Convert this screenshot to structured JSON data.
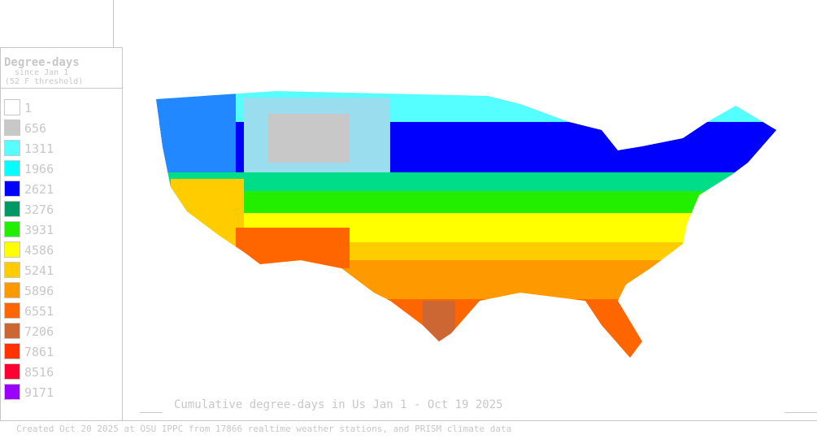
{
  "legend": {
    "title": "Degree-days",
    "subtitle": "since Jan 1",
    "threshold": "(52 F threshold)",
    "items": [
      {
        "value": 1,
        "color": "#ffffff"
      },
      {
        "value": 656,
        "color": "#c8c8c8"
      },
      {
        "value": 1311,
        "color": "#55ffff"
      },
      {
        "value": 1966,
        "color": "#00ffff"
      },
      {
        "value": 2621,
        "color": "#0000ff"
      },
      {
        "value": 3276,
        "color": "#009966"
      },
      {
        "value": 3931,
        "color": "#22ee00"
      },
      {
        "value": 4586,
        "color": "#ffff00"
      },
      {
        "value": 5241,
        "color": "#ffcc00"
      },
      {
        "value": 5896,
        "color": "#ff9900"
      },
      {
        "value": 6551,
        "color": "#ff6600"
      },
      {
        "value": 7206,
        "color": "#cc6633"
      },
      {
        "value": 7861,
        "color": "#ff3300"
      },
      {
        "value": 8516,
        "color": "#ff0033"
      },
      {
        "value": 9171,
        "color": "#9900ff"
      }
    ]
  },
  "caption": "Cumulative degree-days in Us  Jan 1 - Oct 19 2025",
  "footer": "Created Oct 20 2025 at OSU IPPC from 17866 realtime weather stations, and PRISM climate data"
}
